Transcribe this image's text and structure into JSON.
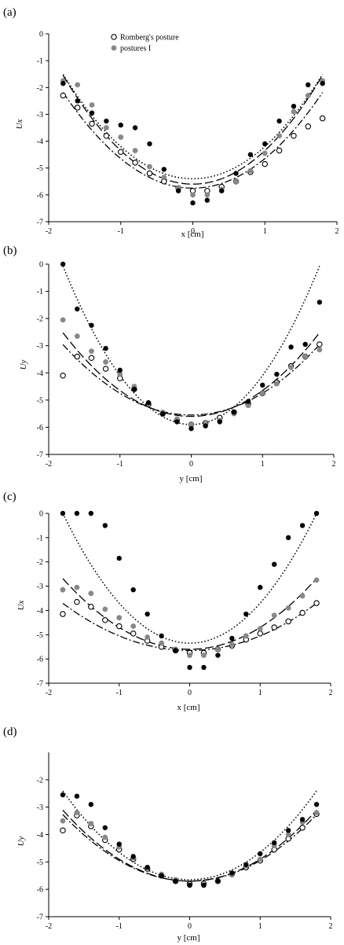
{
  "legend": {
    "entries": [
      {
        "label": "Romberg's posture",
        "marker": "open"
      },
      {
        "label": "postures I",
        "marker": "gray"
      }
    ]
  },
  "colors": {
    "black": "#000000",
    "gray": "#888888",
    "open_fill": "#ffffff"
  },
  "chart_data": [
    {
      "type": "scatter",
      "panel": "(a)",
      "xlabel": "x [cm]",
      "ylabel": "Ux",
      "xlim": [
        -2,
        2
      ],
      "ylim": [
        -7,
        0
      ],
      "xticks": [
        -2,
        -1,
        0,
        1,
        2
      ],
      "yticks": [
        0,
        -1,
        -2,
        -3,
        -4,
        -5,
        -6,
        -7
      ],
      "grid": false,
      "legend_position": "top-left",
      "series": [
        {
          "marker": "open",
          "fit": {
            "a": 1.1,
            "b": 0.0,
            "c": -5.75,
            "style": "dash-dot"
          },
          "x": [
            -1.8,
            -1.6,
            -1.4,
            -1.2,
            -1.0,
            -0.8,
            -0.6,
            -0.4,
            -0.2,
            0.0,
            0.2,
            0.4,
            0.6,
            0.8,
            1.0,
            1.2,
            1.4,
            1.6,
            1.8
          ],
          "y": [
            -2.3,
            -2.75,
            -3.35,
            -3.8,
            -4.4,
            -4.8,
            -5.2,
            -5.5,
            -5.75,
            -5.85,
            -5.85,
            -5.7,
            -5.5,
            -5.15,
            -4.85,
            -4.35,
            -3.8,
            -3.45,
            -3.15
          ]
        },
        {
          "marker": "gray",
          "fit": {
            "a": 1.25,
            "b": 0.0,
            "c": -5.6,
            "style": "long-dash"
          },
          "x": [
            -1.8,
            -1.6,
            -1.4,
            -1.2,
            -1.0,
            -0.8,
            -0.6,
            -0.4,
            -0.2,
            0.0,
            0.2,
            0.4,
            0.6,
            0.8,
            1.0,
            1.2,
            1.4,
            1.6,
            1.8
          ],
          "y": [
            -1.75,
            -1.9,
            -2.65,
            -3.5,
            -3.85,
            -4.35,
            -4.95,
            -5.35,
            -5.75,
            -6.0,
            -6.0,
            -5.8,
            -5.5,
            -5.1,
            -4.45,
            -3.8,
            -2.9,
            -2.3,
            -1.75
          ]
        },
        {
          "marker": "black",
          "fit": {
            "a": 1.2,
            "b": 0.0,
            "c": -5.4,
            "style": "dotted"
          },
          "x": [
            -1.8,
            -1.6,
            -1.4,
            -1.2,
            -1.0,
            -0.8,
            -0.6,
            -0.4,
            -0.2,
            0.0,
            0.2,
            0.4,
            0.6,
            0.8,
            1.0,
            1.2,
            1.4,
            1.6,
            1.8
          ],
          "y": [
            -1.85,
            -2.5,
            -2.95,
            -3.25,
            -3.4,
            -3.5,
            -4.1,
            -5.05,
            -5.85,
            -6.3,
            -6.2,
            -5.85,
            -5.2,
            -4.5,
            -4.1,
            -3.25,
            -2.7,
            -1.9,
            -1.85
          ]
        }
      ]
    },
    {
      "type": "scatter",
      "panel": "(b)",
      "xlabel": "y [cm]",
      "ylabel": "Uy",
      "xlim": [
        -2,
        2
      ],
      "ylim": [
        -7,
        0
      ],
      "xticks": [
        -2,
        -1,
        0,
        1,
        2
      ],
      "yticks": [
        0,
        -1,
        -2,
        -3,
        -4,
        -5,
        -6,
        -7
      ],
      "grid": false,
      "series": [
        {
          "marker": "open",
          "fit": {
            "a": 0.8,
            "b": 0.0,
            "c": -5.55,
            "style": "dash-dot"
          },
          "x": [
            -1.8,
            -1.6,
            -1.4,
            -1.2,
            -1.0,
            -0.8,
            -0.6,
            -0.4,
            -0.2,
            0.0,
            0.2,
            0.4,
            0.6,
            0.8,
            1.0,
            1.2,
            1.4,
            1.6,
            1.8
          ],
          "y": [
            -4.1,
            -3.4,
            -3.45,
            -3.85,
            -4.2,
            -4.6,
            -5.15,
            -5.5,
            -5.75,
            -5.9,
            -5.85,
            -5.65,
            -5.45,
            -5.15,
            -4.75,
            -4.35,
            -3.75,
            -3.4,
            -2.95
          ]
        },
        {
          "marker": "gray",
          "fit": {
            "a": 0.95,
            "b": 0.0,
            "c": -5.6,
            "style": "long-dash"
          },
          "x": [
            -1.8,
            -1.6,
            -1.4,
            -1.2,
            -1.0,
            -0.8,
            -0.6,
            -0.4,
            -0.2,
            0.0,
            0.2,
            0.4,
            0.6,
            0.8,
            1.0,
            1.2,
            1.4,
            1.6,
            1.8
          ],
          "y": [
            -2.05,
            -2.65,
            -3.2,
            -3.6,
            -4.05,
            -4.5,
            -5.1,
            -5.45,
            -5.7,
            -5.9,
            -5.9,
            -5.75,
            -5.5,
            -5.2,
            -4.75,
            -4.4,
            -3.8,
            -3.4,
            -3.15
          ]
        },
        {
          "marker": "black",
          "fit": {
            "a": 1.8,
            "b": 0.0,
            "c": -5.9,
            "style": "dotted"
          },
          "x": [
            -1.8,
            -1.6,
            -1.4,
            -1.2,
            -1.0,
            -0.8,
            -0.6,
            -0.4,
            -0.2,
            0.0,
            0.2,
            0.4,
            0.6,
            0.8,
            1.0,
            1.2,
            1.4,
            1.6,
            1.8
          ],
          "y": [
            0.0,
            -1.65,
            -2.25,
            -3.1,
            -3.9,
            -4.6,
            -5.1,
            -5.5,
            -5.8,
            -6.05,
            -5.95,
            -5.8,
            -5.45,
            -5.05,
            -4.45,
            -4.05,
            -3.05,
            -2.95,
            -1.4
          ]
        }
      ]
    },
    {
      "type": "scatter",
      "panel": "(c)",
      "xlabel": "x [cm]",
      "ylabel": "Ux",
      "xlim": [
        -2,
        2
      ],
      "ylim": [
        -7,
        0
      ],
      "xticks": [
        -2,
        -1,
        0,
        1,
        2
      ],
      "yticks": [
        0,
        -1,
        -2,
        -3,
        -4,
        -5,
        -6,
        -7
      ],
      "grid": false,
      "series": [
        {
          "marker": "open",
          "fit": {
            "a": 0.6,
            "b": 0.0,
            "c": -5.65,
            "style": "dash-dot"
          },
          "x": [
            -1.8,
            -1.6,
            -1.4,
            -1.2,
            -1.0,
            -0.8,
            -0.6,
            -0.4,
            -0.2,
            0.0,
            0.2,
            0.4,
            0.6,
            0.8,
            1.0,
            1.2,
            1.4,
            1.6,
            1.8
          ],
          "y": [
            -4.15,
            -3.65,
            -3.85,
            -4.4,
            -4.65,
            -4.95,
            -5.25,
            -5.5,
            -5.65,
            -5.75,
            -5.75,
            -5.6,
            -5.45,
            -5.2,
            -4.95,
            -4.7,
            -4.45,
            -4.1,
            -3.7
          ]
        },
        {
          "marker": "gray",
          "fit": {
            "a": 0.9,
            "b": 0.0,
            "c": -5.6,
            "style": "long-dash"
          },
          "x": [
            -1.8,
            -1.6,
            -1.4,
            -1.2,
            -1.0,
            -0.8,
            -0.6,
            -0.4,
            -0.2,
            0.0,
            0.2,
            0.4,
            0.6,
            0.8,
            1.0,
            1.2,
            1.4,
            1.6,
            1.8
          ],
          "y": [
            -3.15,
            -3.05,
            -3.3,
            -3.95,
            -4.3,
            -4.65,
            -5.1,
            -5.35,
            -5.6,
            -5.85,
            -5.85,
            -5.6,
            -5.4,
            -5.05,
            -4.75,
            -4.2,
            -3.9,
            -3.4,
            -2.75
          ]
        },
        {
          "marker": "black",
          "fit": {
            "a": 1.65,
            "b": 0.0,
            "c": -5.35,
            "style": "dotted"
          },
          "x": [
            -1.8,
            -1.6,
            -1.4,
            -1.2,
            -1.0,
            -0.8,
            -0.6,
            -0.4,
            -0.2,
            0.0,
            0.2,
            0.4,
            0.6,
            0.8,
            1.0,
            1.2,
            1.4,
            1.6,
            1.8
          ],
          "y": [
            0.0,
            0.0,
            0.0,
            -0.5,
            -1.85,
            -3.15,
            -4.15,
            -5.05,
            -5.65,
            -6.35,
            -6.35,
            -5.85,
            -5.15,
            -4.15,
            -3.05,
            -2.1,
            -1.0,
            -0.5,
            0.0
          ]
        }
      ]
    },
    {
      "type": "scatter",
      "panel": "(d)",
      "xlabel": "y [cm]",
      "ylabel": "Uy",
      "xlim": [
        -2,
        2
      ],
      "ylim": [
        -7,
        -1
      ],
      "xticks": [
        -2,
        -1,
        0,
        1,
        2
      ],
      "yticks": [
        -2,
        -3,
        -4,
        -5,
        -6,
        -7
      ],
      "grid": false,
      "series": [
        {
          "marker": "open",
          "fit": {
            "a": 0.75,
            "b": 0.0,
            "c": -5.7,
            "style": "dash-dot"
          },
          "x": [
            -1.8,
            -1.6,
            -1.4,
            -1.2,
            -1.0,
            -0.8,
            -0.6,
            -0.4,
            -0.2,
            0.0,
            0.2,
            0.4,
            0.6,
            0.8,
            1.0,
            1.2,
            1.4,
            1.6,
            1.8
          ],
          "y": [
            -3.85,
            -3.3,
            -3.7,
            -4.2,
            -4.55,
            -4.9,
            -5.25,
            -5.5,
            -5.7,
            -5.8,
            -5.8,
            -5.7,
            -5.45,
            -5.2,
            -4.95,
            -4.55,
            -4.15,
            -3.75,
            -3.25
          ]
        },
        {
          "marker": "gray",
          "fit": {
            "a": 0.8,
            "b": 0.0,
            "c": -5.7,
            "style": "long-dash"
          },
          "x": [
            -1.8,
            -1.6,
            -1.4,
            -1.2,
            -1.0,
            -0.8,
            -0.6,
            -0.4,
            -0.2,
            0.0,
            0.2,
            0.4,
            0.6,
            0.8,
            1.0,
            1.2,
            1.4,
            1.6,
            1.8
          ],
          "y": [
            -3.5,
            -3.2,
            -3.6,
            -4.1,
            -4.45,
            -4.85,
            -5.2,
            -5.45,
            -5.65,
            -5.85,
            -5.85,
            -5.7,
            -5.45,
            -5.15,
            -4.9,
            -4.4,
            -4.0,
            -3.55,
            -3.2
          ]
        },
        {
          "marker": "black",
          "fit": {
            "a": 1.0,
            "b": 0.0,
            "c": -5.65,
            "style": "dotted"
          },
          "x": [
            -1.8,
            -1.6,
            -1.4,
            -1.2,
            -1.0,
            -0.8,
            -0.6,
            -0.4,
            -0.2,
            0.0,
            0.2,
            0.4,
            0.6,
            0.8,
            1.0,
            1.2,
            1.4,
            1.6,
            1.8
          ],
          "y": [
            -2.55,
            -2.6,
            -2.9,
            -3.75,
            -4.35,
            -4.8,
            -5.2,
            -5.5,
            -5.7,
            -5.85,
            -5.85,
            -5.7,
            -5.4,
            -5.1,
            -4.7,
            -4.3,
            -3.85,
            -3.45,
            -2.9
          ]
        }
      ]
    }
  ]
}
